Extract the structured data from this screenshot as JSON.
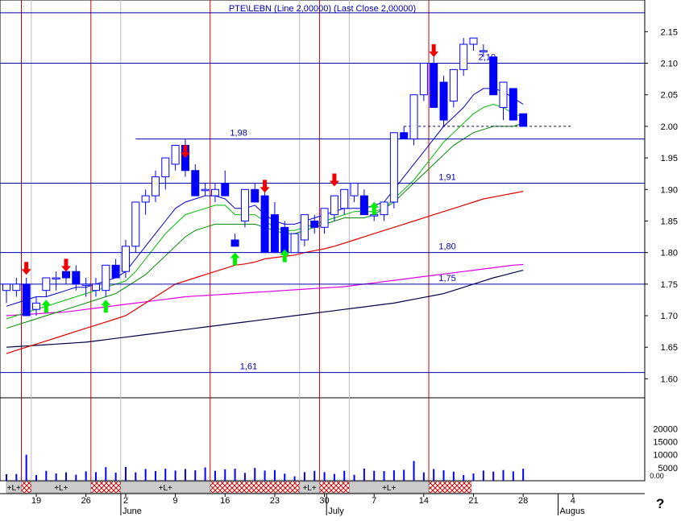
{
  "header_text": "PTE\\LEBN (Line 2,00000) (Last Close 2,00000)",
  "help_symbol": "?",
  "chart_data": {
    "type": "candlestick",
    "title": "",
    "colors": {
      "up_candle": "#ffffff",
      "down_candle": "#0000ff",
      "candle_outline": "#0000ff",
      "ema_fast": "#0000cc",
      "ema_mid": "#00bb00",
      "ema_slow_green": "#008800",
      "ma_red": "#dd0000",
      "ma_magenta": "#dd00dd",
      "ma_navy": "#000044",
      "hline": "#0000aa",
      "vline": "#cc0000",
      "grid": "#bbbbbb",
      "volume": "#0000ff",
      "buy_arrow": "#00ee00",
      "sell_arrow": "#ee0000",
      "band_long": "#cccccc",
      "band_short": "#cc0000"
    },
    "price_axis": {
      "min": 1.575,
      "max": 2.19,
      "ticks": [
        "1.60",
        "1.65",
        "1.70",
        "1.75",
        "1.80",
        "1.85",
        "1.90",
        "1.95",
        "2.00",
        "2.05",
        "2.10",
        "2.15"
      ]
    },
    "volume_axis": {
      "min": 0,
      "max": 30000,
      "ticks": [
        {
          "v": 5000,
          "label": "5000"
        },
        {
          "v": 10000,
          "label": "10000"
        },
        {
          "v": 15000,
          "label": "15000"
        },
        {
          "v": 20000,
          "label": "20000"
        }
      ],
      "zero_label": "0.00"
    },
    "date_labels": [
      {
        "i": 3,
        "label": "19"
      },
      {
        "i": 8,
        "label": "26"
      },
      {
        "i": 12,
        "label": "2"
      },
      {
        "i": 17,
        "label": "9"
      },
      {
        "i": 22,
        "label": "16"
      },
      {
        "i": 27,
        "label": "23"
      },
      {
        "i": 32,
        "label": "30"
      },
      {
        "i": 37,
        "label": "7"
      },
      {
        "i": 42,
        "label": "14"
      },
      {
        "i": 47,
        "label": "21"
      },
      {
        "i": 52,
        "label": "28"
      },
      {
        "i": 57,
        "label": "4"
      }
    ],
    "month_labels": [
      {
        "i": 12,
        "label": "June"
      },
      {
        "i": 32.7,
        "label": "July"
      },
      {
        "i": 56,
        "label": "Augus"
      }
    ],
    "week_grid_idx": [
      2.5,
      11.5,
      29.5,
      34.5
    ],
    "vlines_idx": [
      1.5,
      8.5,
      20.5,
      31.5,
      42.5
    ],
    "hlines": [
      {
        "price": 2.18,
        "label": ""
      },
      {
        "price": 2.1,
        "label": "2,10",
        "label_i": 47.5
      },
      {
        "price": 1.98,
        "label": "1,98",
        "label_i": 22.5
      },
      {
        "price": 1.91,
        "label": "1,91",
        "label_i": 43.5
      },
      {
        "price": 1.8,
        "label": "1,80",
        "label_i": 43.5
      },
      {
        "price": 1.75,
        "label": "1,75",
        "label_i": 43.5
      },
      {
        "price": 1.61,
        "label": "1,61",
        "label_i": 23.5
      }
    ],
    "dashed_line": {
      "price": 2.0,
      "from_i": 40,
      "to_i": 57
    },
    "candles": [
      [
        1.74,
        1.75,
        1.72,
        1.75
      ],
      [
        1.74,
        1.76,
        1.73,
        1.75
      ],
      [
        1.75,
        1.76,
        1.7,
        1.7
      ],
      [
        1.71,
        1.73,
        1.7,
        1.72
      ],
      [
        1.74,
        1.76,
        1.73,
        1.76
      ],
      [
        1.76,
        1.77,
        1.74,
        1.76
      ],
      [
        1.77,
        1.78,
        1.75,
        1.76
      ],
      [
        1.77,
        1.78,
        1.74,
        1.75
      ],
      [
        1.75,
        1.76,
        1.73,
        1.75
      ],
      [
        1.74,
        1.76,
        1.73,
        1.75
      ],
      [
        1.74,
        1.78,
        1.73,
        1.78
      ],
      [
        1.78,
        1.79,
        1.76,
        1.76
      ],
      [
        1.77,
        1.82,
        1.76,
        1.81
      ],
      [
        1.81,
        1.88,
        1.8,
        1.88
      ],
      [
        1.88,
        1.9,
        1.86,
        1.89
      ],
      [
        1.89,
        1.93,
        1.88,
        1.92
      ],
      [
        1.92,
        1.95,
        1.9,
        1.95
      ],
      [
        1.94,
        1.97,
        1.93,
        1.97
      ],
      [
        1.97,
        1.98,
        1.92,
        1.93
      ],
      [
        1.93,
        1.94,
        1.89,
        1.89
      ],
      [
        1.9,
        1.91,
        1.89,
        1.9
      ],
      [
        1.89,
        1.91,
        1.88,
        1.9
      ],
      [
        1.91,
        1.93,
        1.89,
        1.89
      ],
      [
        1.82,
        1.83,
        1.81,
        1.81
      ],
      [
        1.85,
        1.9,
        1.84,
        1.9
      ],
      [
        1.9,
        1.91,
        1.88,
        1.88
      ],
      [
        1.89,
        1.9,
        1.8,
        1.8
      ],
      [
        1.86,
        1.88,
        1.8,
        1.8
      ],
      [
        1.84,
        1.85,
        1.8,
        1.8
      ],
      [
        1.8,
        1.83,
        1.8,
        1.83
      ],
      [
        1.82,
        1.86,
        1.81,
        1.86
      ],
      [
        1.85,
        1.86,
        1.83,
        1.84
      ],
      [
        1.84,
        1.87,
        1.83,
        1.87
      ],
      [
        1.86,
        1.89,
        1.85,
        1.89
      ],
      [
        1.87,
        1.9,
        1.86,
        1.9
      ],
      [
        1.89,
        1.91,
        1.88,
        1.91
      ],
      [
        1.89,
        1.9,
        1.86,
        1.86
      ],
      [
        1.86,
        1.88,
        1.85,
        1.86
      ],
      [
        1.86,
        1.88,
        1.85,
        1.88
      ],
      [
        1.88,
        1.99,
        1.87,
        1.99
      ],
      [
        1.99,
        2.0,
        1.98,
        1.98
      ],
      [
        1.98,
        2.05,
        1.97,
        2.05
      ],
      [
        2.05,
        2.1,
        2.04,
        2.1
      ],
      [
        2.1,
        2.11,
        2.03,
        2.03
      ],
      [
        2.07,
        2.08,
        2.0,
        2.01
      ],
      [
        2.04,
        2.09,
        2.03,
        2.09
      ],
      [
        2.09,
        2.14,
        2.08,
        2.13
      ],
      [
        2.13,
        2.14,
        2.12,
        2.14
      ],
      [
        2.12,
        2.13,
        2.11,
        2.12
      ],
      [
        2.11,
        2.11,
        2.05,
        2.05
      ],
      [
        2.03,
        2.07,
        2.01,
        2.07
      ],
      [
        2.06,
        2.06,
        2.01,
        2.01
      ],
      [
        2.02,
        2.02,
        2.0,
        2.0
      ]
    ],
    "candle_offset": 0,
    "volume": [
      2500,
      2600,
      10000,
      2200,
      3800,
      2800,
      3200,
      2300,
      3600,
      3300,
      5200,
      3100,
      5300,
      3200,
      4500,
      3700,
      4600,
      3900,
      4500,
      4000,
      5100,
      3800,
      4400,
      4600,
      3000,
      4900,
      3900,
      4100,
      2700,
      1700,
      3300,
      3800,
      3300,
      2600,
      3800,
      2300,
      4700,
      3800,
      3700,
      4000,
      4200,
      7600,
      3200,
      4500,
      4000,
      3500,
      2200,
      2800,
      3900,
      3500,
      4100,
      3600,
      4600
    ],
    "ema_fast": [
      1.715,
      1.72,
      1.725,
      1.73,
      1.73,
      1.735,
      1.74,
      1.745,
      1.745,
      1.75,
      1.755,
      1.76,
      1.77,
      1.79,
      1.81,
      1.83,
      1.85,
      1.87,
      1.88,
      1.885,
      1.89,
      1.89,
      1.885,
      1.87,
      1.87,
      1.875,
      1.86,
      1.85,
      1.845,
      1.845,
      1.85,
      1.855,
      1.86,
      1.865,
      1.87,
      1.87,
      1.87,
      1.875,
      1.88,
      1.9,
      1.92,
      1.94,
      1.96,
      1.98,
      2.0,
      2.015,
      2.03,
      2.05,
      2.06,
      2.06,
      2.055,
      2.045,
      2.035
    ],
    "ema_mid": [
      1.695,
      1.7,
      1.705,
      1.71,
      1.715,
      1.72,
      1.725,
      1.73,
      1.735,
      1.74,
      1.745,
      1.75,
      1.755,
      1.77,
      1.79,
      1.81,
      1.83,
      1.845,
      1.86,
      1.865,
      1.87,
      1.875,
      1.875,
      1.86,
      1.86,
      1.86,
      1.85,
      1.84,
      1.835,
      1.835,
      1.84,
      1.845,
      1.85,
      1.855,
      1.86,
      1.865,
      1.865,
      1.865,
      1.87,
      1.885,
      1.9,
      1.915,
      1.935,
      1.955,
      1.975,
      1.99,
      2.005,
      2.02,
      2.03,
      2.035,
      2.03,
      2.02,
      2.015
    ],
    "ema_slow_green": [
      1.68,
      1.685,
      1.69,
      1.695,
      1.7,
      1.705,
      1.71,
      1.715,
      1.72,
      1.725,
      1.73,
      1.735,
      1.745,
      1.755,
      1.765,
      1.78,
      1.795,
      1.81,
      1.825,
      1.835,
      1.84,
      1.845,
      1.845,
      1.845,
      1.845,
      1.845,
      1.84,
      1.835,
      1.83,
      1.83,
      1.835,
      1.84,
      1.845,
      1.85,
      1.855,
      1.855,
      1.855,
      1.86,
      1.87,
      1.88,
      1.895,
      1.91,
      1.925,
      1.94,
      1.955,
      1.97,
      1.98,
      1.99,
      1.995,
      2.0,
      2.0,
      2.0,
      2.005
    ],
    "ma_red": [
      1.64,
      1.645,
      1.65,
      1.655,
      1.66,
      1.665,
      1.67,
      1.675,
      1.68,
      1.685,
      1.69,
      1.695,
      1.7,
      1.71,
      1.72,
      1.73,
      1.74,
      1.75,
      1.755,
      1.76,
      1.765,
      1.77,
      1.775,
      1.78,
      1.782,
      1.785,
      1.79,
      1.792,
      1.794,
      1.796,
      1.8,
      1.803,
      1.806,
      1.81,
      1.815,
      1.82,
      1.825,
      1.83,
      1.835,
      1.84,
      1.845,
      1.85,
      1.855,
      1.86,
      1.865,
      1.87,
      1.875,
      1.88,
      1.885,
      1.888,
      1.891,
      1.894,
      1.897
    ],
    "ma_magenta": [
      1.7,
      1.701,
      1.702,
      1.703,
      1.704,
      1.705,
      1.706,
      1.708,
      1.71,
      1.712,
      1.714,
      1.716,
      1.718,
      1.72,
      1.722,
      1.724,
      1.726,
      1.728,
      1.73,
      1.731,
      1.732,
      1.733,
      1.734,
      1.735,
      1.736,
      1.737,
      1.738,
      1.739,
      1.74,
      1.741,
      1.742,
      1.743,
      1.744,
      1.745,
      1.746,
      1.748,
      1.75,
      1.752,
      1.754,
      1.756,
      1.758,
      1.76,
      1.762,
      1.764,
      1.766,
      1.768,
      1.77,
      1.772,
      1.774,
      1.776,
      1.778,
      1.78,
      1.781
    ],
    "ma_navy": [
      1.65,
      1.651,
      1.652,
      1.653,
      1.654,
      1.655,
      1.656,
      1.657,
      1.658,
      1.66,
      1.662,
      1.664,
      1.666,
      1.668,
      1.67,
      1.672,
      1.674,
      1.676,
      1.678,
      1.68,
      1.682,
      1.684,
      1.686,
      1.688,
      1.69,
      1.692,
      1.694,
      1.696,
      1.698,
      1.7,
      1.702,
      1.704,
      1.706,
      1.708,
      1.71,
      1.712,
      1.714,
      1.716,
      1.718,
      1.72,
      1.723,
      1.726,
      1.729,
      1.732,
      1.735,
      1.74,
      1.745,
      1.75,
      1.755,
      1.76,
      1.764,
      1.768,
      1.772
    ],
    "buy_arrows": [
      {
        "i": 4,
        "price": 1.715
      },
      {
        "i": 10,
        "price": 1.715
      },
      {
        "i": 23,
        "price": 1.79
      },
      {
        "i": 28,
        "price": 1.795
      },
      {
        "i": 37,
        "price": 1.87
      }
    ],
    "sell_arrows": [
      {
        "i": 2,
        "price": 1.775
      },
      {
        "i": 6,
        "price": 1.78
      },
      {
        "i": 18,
        "price": 1.96
      },
      {
        "i": 26,
        "price": 1.905
      },
      {
        "i": 33,
        "price": 1.915
      },
      {
        "i": 43,
        "price": 2.12
      }
    ],
    "bands": [
      {
        "from_i": 0,
        "to_i": 1.5,
        "type": "long",
        "label": "+L+"
      },
      {
        "from_i": 1.5,
        "to_i": 2.5,
        "type": "short",
        "label": ""
      },
      {
        "from_i": 2.5,
        "to_i": 8.5,
        "type": "long",
        "label": "+L+"
      },
      {
        "from_i": 8.5,
        "to_i": 11.5,
        "type": "short",
        "label": ""
      },
      {
        "from_i": 11.5,
        "to_i": 20.5,
        "type": "long",
        "label": "+L+"
      },
      {
        "from_i": 20.5,
        "to_i": 29.5,
        "type": "short",
        "label": ""
      },
      {
        "from_i": 29.5,
        "to_i": 31.5,
        "type": "long",
        "label": "+L+"
      },
      {
        "from_i": 31.5,
        "to_i": 34.5,
        "type": "short",
        "label": ""
      },
      {
        "from_i": 34.5,
        "to_i": 42.5,
        "type": "long",
        "label": "+L+"
      },
      {
        "from_i": 42.5,
        "to_i": 46.8,
        "type": "short",
        "label": ""
      }
    ]
  }
}
